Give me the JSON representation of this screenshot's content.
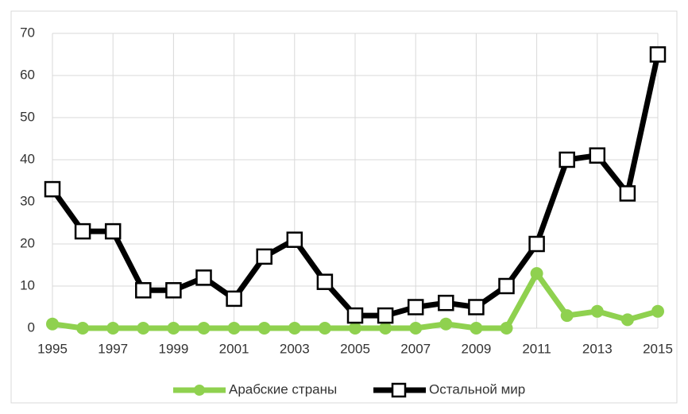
{
  "chart_data": {
    "type": "line",
    "x": [
      1995,
      1996,
      1997,
      1998,
      1999,
      2000,
      2001,
      2002,
      2003,
      2004,
      2005,
      2006,
      2007,
      2008,
      2009,
      2010,
      2011,
      2012,
      2013,
      2014,
      2015
    ],
    "xlim": [
      1995,
      2015
    ],
    "xticks": [
      1995,
      1997,
      1999,
      2001,
      2003,
      2005,
      2007,
      2009,
      2011,
      2013,
      2015
    ],
    "ylim": [
      0,
      70
    ],
    "yticks": [
      0,
      10,
      20,
      30,
      40,
      50,
      60,
      70
    ],
    "grid": true,
    "legend": "bottom",
    "series": [
      {
        "name": "Арабские страны",
        "color": "#8fd14f",
        "marker": "circle",
        "values": [
          1,
          0,
          0,
          0,
          0,
          0,
          0,
          0,
          0,
          0,
          0,
          0,
          0,
          1,
          0,
          0,
          13,
          3,
          4,
          2,
          4
        ]
      },
      {
        "name": "Остальной мир",
        "color": "#000000",
        "marker": "square",
        "values": [
          33,
          23,
          23,
          9,
          9,
          12,
          7,
          17,
          21,
          11,
          3,
          3,
          5,
          6,
          5,
          10,
          20,
          40,
          41,
          32,
          65
        ]
      }
    ]
  }
}
